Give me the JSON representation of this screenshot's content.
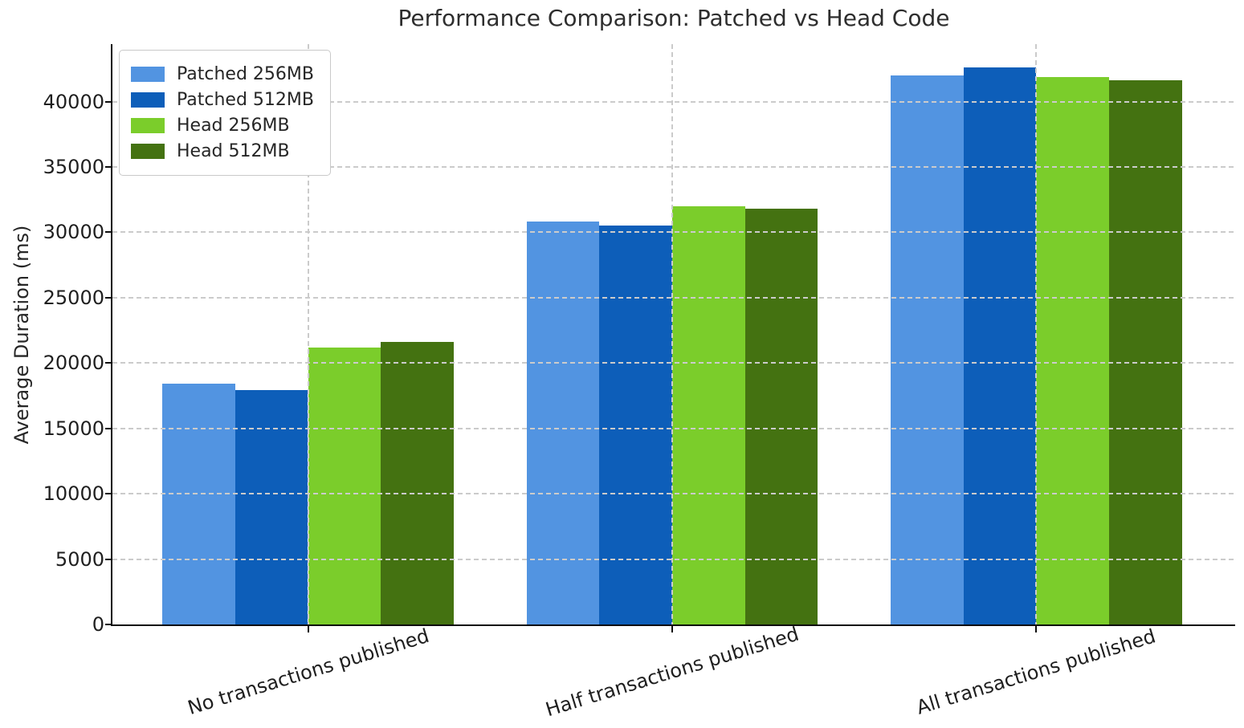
{
  "chart_data": {
    "type": "bar",
    "title": "Performance Comparison: Patched vs Head Code",
    "ylabel": "Average Duration (ms)",
    "categories": [
      "No transactions published",
      "Half transactions published",
      "All transactions published"
    ],
    "series": [
      {
        "name": "Patched 256MB",
        "color": "#5294e1",
        "values": [
          18400,
          30800,
          42000
        ]
      },
      {
        "name": "Patched 512MB",
        "color": "#0d5eb9",
        "values": [
          17900,
          30500,
          42600
        ]
      },
      {
        "name": "Head 256MB",
        "color": "#7bcd2b",
        "values": [
          21200,
          32000,
          41900
        ]
      },
      {
        "name": "Head 512MB",
        "color": "#447211",
        "values": [
          21600,
          31800,
          41600
        ]
      }
    ],
    "yticks": [
      0,
      5000,
      10000,
      15000,
      20000,
      25000,
      30000,
      35000,
      40000
    ],
    "ylim": [
      0,
      44390
    ],
    "grid": "dashed-both-axes-on-top",
    "legend_position": "upper left",
    "xtick_rotation_deg": 17
  }
}
